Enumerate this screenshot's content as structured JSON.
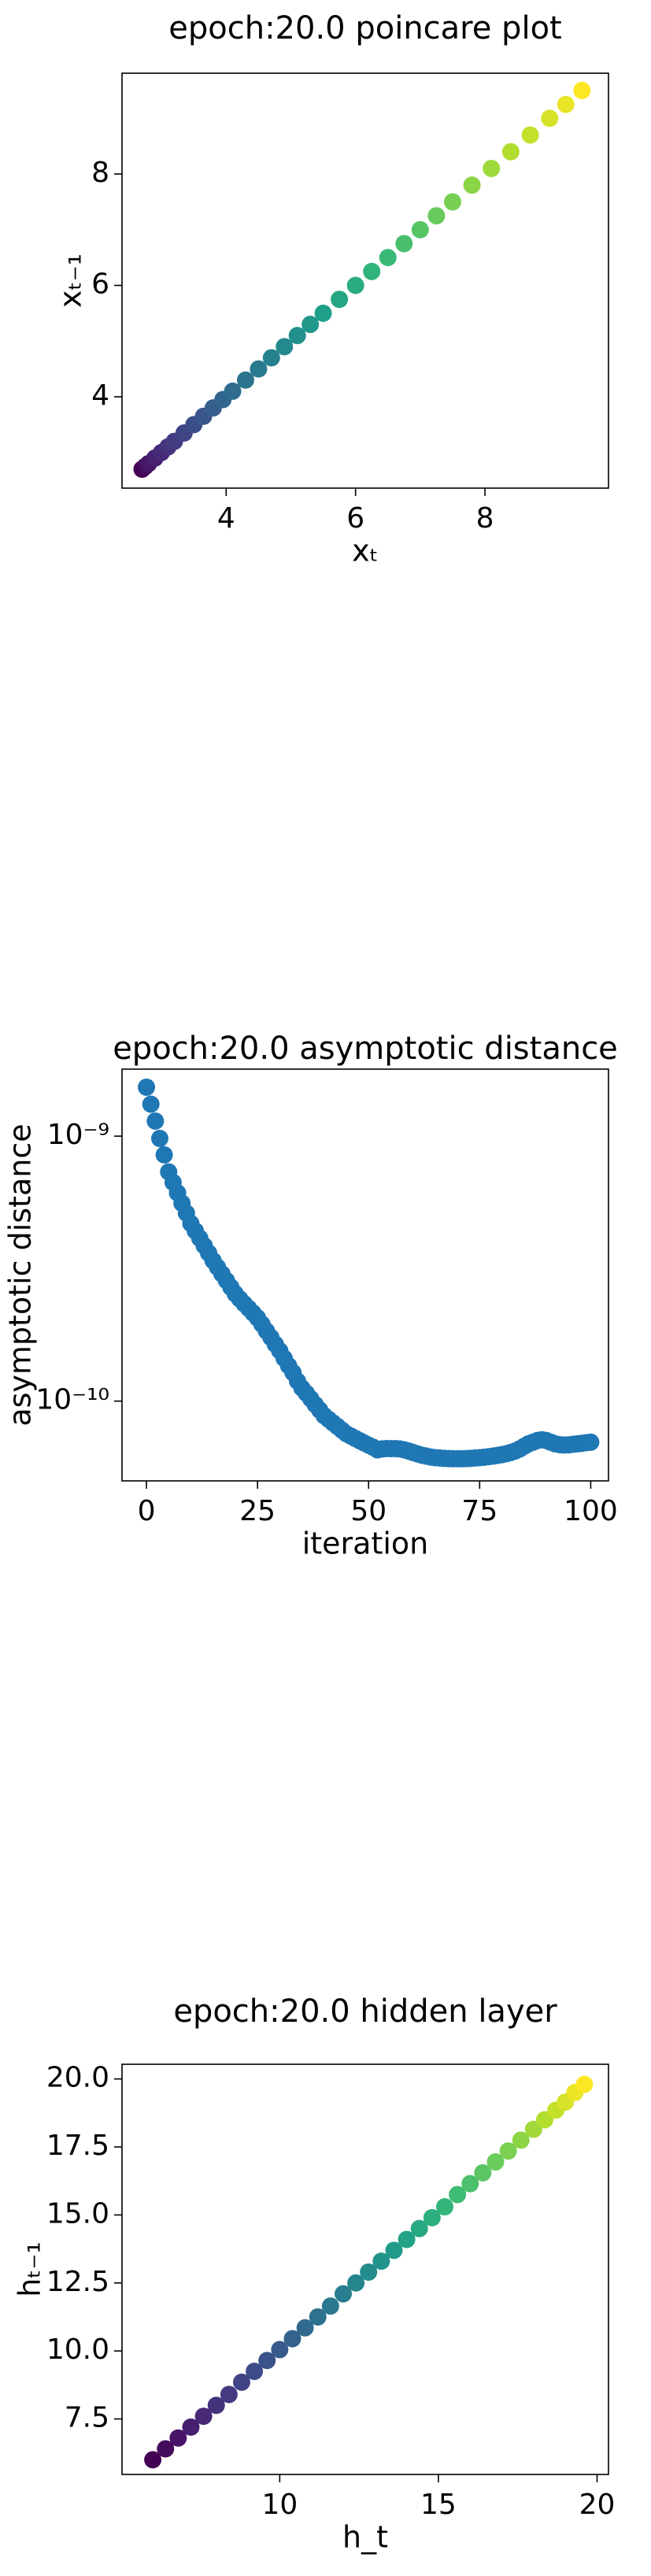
{
  "chart_data": [
    {
      "type": "scatter",
      "title": "epoch:20.0 poincare plot",
      "x_label": "xₜ",
      "y_label": "xₜ₋₁",
      "colormap": "viridis",
      "x": [
        2.7,
        2.75,
        2.8,
        2.9,
        3.0,
        3.1,
        3.2,
        3.35,
        3.5,
        3.65,
        3.8,
        3.95,
        4.1,
        4.3,
        4.5,
        4.7,
        4.9,
        5.1,
        5.3,
        5.5,
        5.75,
        6.0,
        6.25,
        6.5,
        6.75,
        7.0,
        7.25,
        7.5,
        7.8,
        8.1,
        8.4,
        8.7,
        9.0,
        9.25,
        9.5
      ],
      "values": [
        2.7,
        2.75,
        2.8,
        2.9,
        3.0,
        3.1,
        3.2,
        3.35,
        3.5,
        3.65,
        3.8,
        3.95,
        4.1,
        4.3,
        4.5,
        4.7,
        4.9,
        5.1,
        5.3,
        5.5,
        5.75,
        6.0,
        6.25,
        6.5,
        6.75,
        7.0,
        7.25,
        7.5,
        7.8,
        8.1,
        8.4,
        8.7,
        9.0,
        9.25,
        9.5
      ],
      "xlim": [
        2.39,
        9.91
      ],
      "xticks": [
        4,
        6,
        8
      ],
      "ylim": [
        2.36,
        9.81
      ],
      "yticks": [
        4,
        6,
        8
      ]
    },
    {
      "type": "scatter",
      "title": "epoch:20.0 asymptotic distance",
      "x_label": "iteration",
      "y_label": "asymptotic distance",
      "color": "#1f77b4",
      "yscale": "log",
      "x": [
        0,
        1,
        2,
        3,
        4,
        5,
        6,
        7,
        8,
        9,
        10,
        11,
        12,
        13,
        14,
        15,
        16,
        17,
        18,
        19,
        20,
        21,
        22,
        23,
        24,
        25,
        26,
        27,
        28,
        29,
        30,
        31,
        32,
        33,
        34,
        35,
        36,
        37,
        38,
        39,
        40,
        41,
        42,
        43,
        44,
        45,
        46,
        47,
        48,
        49,
        50,
        51,
        52,
        53,
        54,
        55,
        56,
        57,
        58,
        59,
        60,
        61,
        62,
        63,
        64,
        65,
        66,
        67,
        68,
        69,
        70,
        71,
        72,
        73,
        74,
        75,
        76,
        77,
        78,
        79,
        80,
        81,
        82,
        83,
        84,
        85,
        86,
        87,
        88,
        89,
        90,
        91,
        92,
        93,
        94,
        95,
        96,
        97,
        98,
        99,
        100
      ],
      "values": [
        1.53e-09,
        1.32e-09,
        1.14e-09,
        9.8e-10,
        8.5e-10,
        7.33e-10,
        6.69e-10,
        6.11e-10,
        5.58e-10,
        5.12e-10,
        4.68e-10,
        4.39e-10,
        4.12e-10,
        3.86e-10,
        3.62e-10,
        3.39e-10,
        3.2e-10,
        3.02e-10,
        2.85e-10,
        2.69e-10,
        2.54e-10,
        2.43e-10,
        2.33e-10,
        2.24e-10,
        2.15e-10,
        2.06e-10,
        1.95e-10,
        1.84e-10,
        1.74e-10,
        1.64e-10,
        1.55e-10,
        1.45e-10,
        1.36e-10,
        1.28e-10,
        1.19e-10,
        1.12e-10,
        1.07e-10,
        1.02e-10,
        9.7e-11,
        9.25e-11,
        8.81e-11,
        8.54e-11,
        8.27e-11,
        8.02e-11,
        7.77e-11,
        7.53e-11,
        7.38e-11,
        7.23e-11,
        7.09e-11,
        6.95e-11,
        6.82e-11,
        6.7e-11,
        6.55e-11,
        6.6e-11,
        6.62e-11,
        6.62e-11,
        6.62e-11,
        6.6e-11,
        6.55e-11,
        6.48e-11,
        6.4e-11,
        6.32e-11,
        6.25e-11,
        6.2e-11,
        6.15e-11,
        6.12e-11,
        6.1e-11,
        6.08e-11,
        6.07e-11,
        6.06e-11,
        6.06e-11,
        6.06e-11,
        6.07e-11,
        6.08e-11,
        6.1e-11,
        6.12e-11,
        6.14e-11,
        6.17e-11,
        6.2e-11,
        6.24e-11,
        6.28e-11,
        6.33e-11,
        6.4e-11,
        6.48e-11,
        6.6e-11,
        6.75e-11,
        6.9e-11,
        7e-11,
        7.1e-11,
        7.15e-11,
        7.1e-11,
        7e-11,
        6.9e-11,
        6.85e-11,
        6.83e-11,
        6.84e-11,
        6.87e-11,
        6.9e-11,
        6.93e-11,
        6.97e-11,
        7e-11
      ],
      "xlim": [
        -5.5,
        104
      ],
      "xticks": [
        0,
        25,
        50,
        75,
        100
      ],
      "ylim": [
        5e-11,
        1.79e-09
      ],
      "yticks": [
        {
          "value": 1e-10,
          "label": "10⁻¹⁰"
        },
        {
          "value": 1e-09,
          "label": "10⁻⁹"
        }
      ]
    },
    {
      "type": "scatter",
      "title": "epoch:20.0 hidden layer",
      "x_label": "h_t",
      "y_label": "hₜ₋₁",
      "colormap": "viridis",
      "x": [
        6.0,
        6.4,
        6.8,
        7.2,
        7.6,
        8.0,
        8.4,
        8.8,
        9.2,
        9.6,
        10.0,
        10.4,
        10.8,
        11.2,
        11.6,
        12.0,
        12.4,
        12.8,
        13.2,
        13.6,
        14.0,
        14.4,
        14.8,
        15.2,
        15.6,
        16.0,
        16.4,
        16.8,
        17.2,
        17.6,
        18.0,
        18.35,
        18.7,
        19.0,
        19.3,
        19.6
      ],
      "values": [
        6.0,
        6.4,
        6.8,
        7.2,
        7.6,
        8.0,
        8.4,
        8.85,
        9.25,
        9.65,
        10.05,
        10.45,
        10.85,
        11.25,
        11.65,
        12.1,
        12.5,
        12.9,
        13.3,
        13.7,
        14.1,
        14.5,
        14.9,
        15.3,
        15.75,
        16.15,
        16.55,
        16.95,
        17.35,
        17.75,
        18.15,
        18.5,
        18.85,
        19.15,
        19.5,
        19.8
      ],
      "xlim": [
        5.03,
        20.36
      ],
      "xticks": [
        10,
        15,
        20
      ],
      "ylim": [
        5.46,
        20.54
      ],
      "yticks": [
        {
          "value": 7.5,
          "label": "7.5"
        },
        {
          "value": 10,
          "label": "10.0"
        },
        {
          "value": 12.5,
          "label": "12.5"
        },
        {
          "value": 15,
          "label": "15.0"
        },
        {
          "value": 17.5,
          "label": "17.5"
        },
        {
          "value": 20,
          "label": "20.0"
        }
      ]
    }
  ]
}
